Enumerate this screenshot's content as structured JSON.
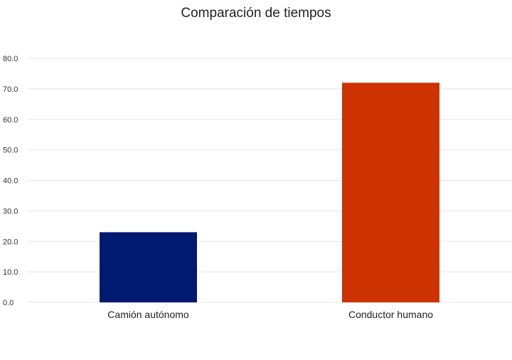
{
  "chart_data": {
    "type": "bar",
    "title": "Comparación de tiempos",
    "categories": [
      "Camión autónomo",
      "Conductor humano"
    ],
    "values": [
      23.0,
      72.0
    ],
    "colors": [
      "#001a72",
      "#cc3300"
    ],
    "xlabel": "",
    "ylabel": "",
    "ylim": [
      0,
      80
    ],
    "yticks": [
      "0.0",
      "10.0",
      "20.0",
      "30.0",
      "40.0",
      "50.0",
      "60.0",
      "70.0",
      "80.0"
    ],
    "grid": true
  }
}
